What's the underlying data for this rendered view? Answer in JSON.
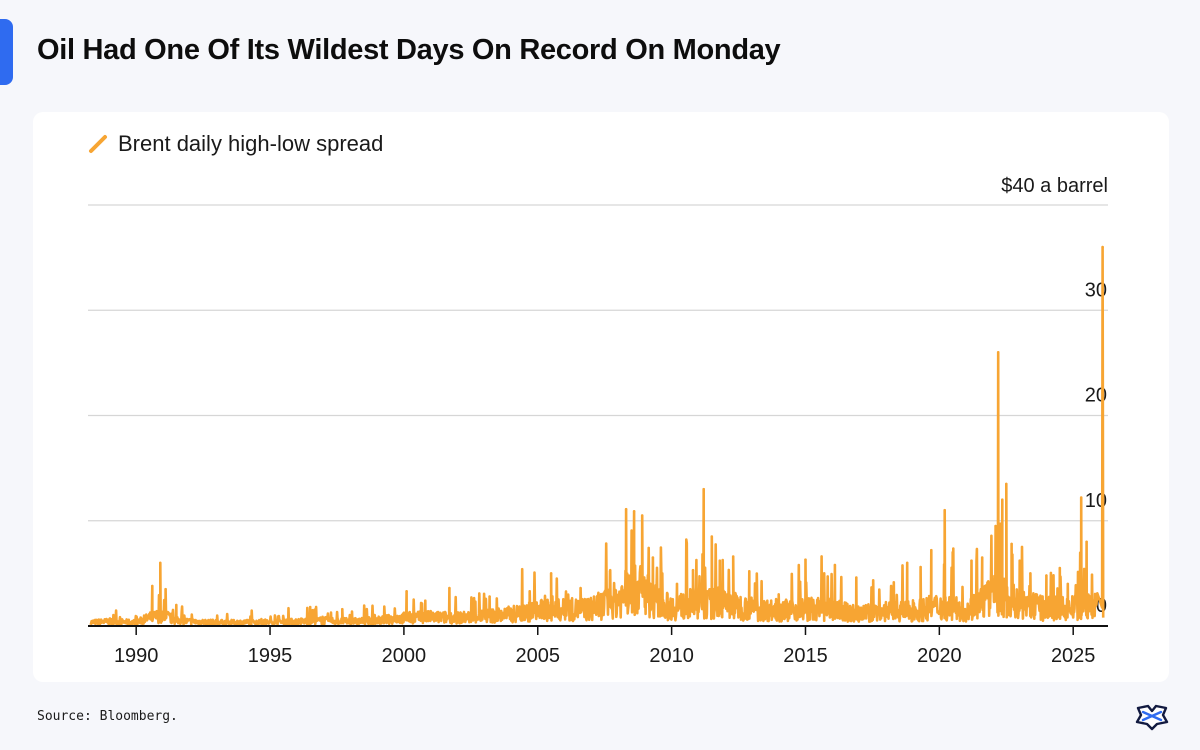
{
  "page": {
    "title": "Oil Had One Of Its Wildest Days On Record On Monday",
    "source": "Source: Bloomberg."
  },
  "colors": {
    "accent": "#2f6bf0",
    "series": "#f7a533",
    "grid": "#d6d6d6",
    "axis": "#111111"
  },
  "chart_data": {
    "type": "line",
    "title": "Oil Had One Of Its Wildest Days On Record On Monday",
    "legend": [
      {
        "label": "Brent daily high-low spread",
        "color": "#f7a533",
        "position": "top-left"
      }
    ],
    "y_unit_label": "$40 a barrel",
    "ylim": [
      0,
      40
    ],
    "yticks": [
      {
        "value": 40,
        "label": "$40 a barrel"
      },
      {
        "value": 30,
        "label": "30"
      },
      {
        "value": 20,
        "label": "20"
      },
      {
        "value": 10,
        "label": "10"
      },
      {
        "value": 0,
        "label": "0"
      }
    ],
    "xlim": [
      1988.2,
      2026.3
    ],
    "xticks": [
      {
        "value": 1990,
        "label": "1990"
      },
      {
        "value": 1995,
        "label": "1995"
      },
      {
        "value": 2000,
        "label": "2000"
      },
      {
        "value": 2005,
        "label": "2005"
      },
      {
        "value": 2010,
        "label": "2010"
      },
      {
        "value": 2015,
        "label": "2015"
      },
      {
        "value": 2020,
        "label": "2020"
      },
      {
        "value": 2025,
        "label": "2025"
      }
    ],
    "grid": true,
    "series": [
      {
        "name": "Brent daily high-low spread",
        "baseline": [
          [
            1988.3,
            0.4
          ],
          [
            1989.0,
            0.5
          ],
          [
            1990.0,
            0.4
          ],
          [
            1990.5,
            0.9
          ],
          [
            1991.0,
            1.2
          ],
          [
            1991.5,
            0.6
          ],
          [
            1992.0,
            0.5
          ],
          [
            1993.0,
            0.4
          ],
          [
            1994.0,
            0.4
          ],
          [
            1995.0,
            0.4
          ],
          [
            1996.0,
            0.5
          ],
          [
            1997.0,
            0.6
          ],
          [
            1998.0,
            0.5
          ],
          [
            1999.0,
            0.6
          ],
          [
            2000.0,
            0.9
          ],
          [
            2001.0,
            1.0
          ],
          [
            2002.0,
            0.9
          ],
          [
            2003.0,
            1.1
          ],
          [
            2004.0,
            1.3
          ],
          [
            2005.0,
            1.7
          ],
          [
            2006.0,
            1.8
          ],
          [
            2007.0,
            1.9
          ],
          [
            2008.0,
            3.0
          ],
          [
            2008.8,
            4.2
          ],
          [
            2009.5,
            2.6
          ],
          [
            2010.0,
            2.0
          ],
          [
            2011.0,
            2.6
          ],
          [
            2012.0,
            2.4
          ],
          [
            2013.0,
            1.9
          ],
          [
            2014.0,
            1.7
          ],
          [
            2015.0,
            1.9
          ],
          [
            2016.0,
            1.8
          ],
          [
            2017.0,
            1.3
          ],
          [
            2018.0,
            1.7
          ],
          [
            2019.0,
            1.6
          ],
          [
            2020.0,
            2.2
          ],
          [
            2021.0,
            1.7
          ],
          [
            2022.0,
            3.4
          ],
          [
            2022.6,
            3.0
          ],
          [
            2023.0,
            2.4
          ],
          [
            2024.0,
            1.9
          ],
          [
            2025.0,
            2.0
          ],
          [
            2025.9,
            2.2
          ]
        ],
        "spikes": [
          [
            1990.6,
            3.8
          ],
          [
            1990.9,
            6.0
          ],
          [
            1991.1,
            3.5
          ],
          [
            1991.5,
            2.0
          ],
          [
            1996.5,
            1.8
          ],
          [
            1997.7,
            1.6
          ],
          [
            2000.1,
            3.3
          ],
          [
            2000.8,
            2.4
          ],
          [
            2001.7,
            3.6
          ],
          [
            2003.2,
            2.8
          ],
          [
            2004.7,
            3.3
          ],
          [
            2005.5,
            5.0
          ],
          [
            2006.6,
            3.6
          ],
          [
            2007.1,
            2.8
          ],
          [
            2007.7,
            5.2
          ],
          [
            2008.3,
            11.1
          ],
          [
            2008.6,
            10.9
          ],
          [
            2008.9,
            10.5
          ],
          [
            2009.3,
            6.5
          ],
          [
            2010.2,
            4.0
          ],
          [
            2010.8,
            5.3
          ],
          [
            2011.2,
            13.0
          ],
          [
            2011.5,
            8.5
          ],
          [
            2011.8,
            6.2
          ],
          [
            2012.3,
            6.6
          ],
          [
            2012.9,
            5.2
          ],
          [
            2014.0,
            3.0
          ],
          [
            2014.8,
            4.2
          ],
          [
            2015.0,
            6.3
          ],
          [
            2015.7,
            5.0
          ],
          [
            2016.1,
            5.8
          ],
          [
            2016.9,
            4.6
          ],
          [
            2017.5,
            3.2
          ],
          [
            2018.2,
            3.8
          ],
          [
            2018.8,
            6.0
          ],
          [
            2019.3,
            5.6
          ],
          [
            2019.7,
            7.2
          ],
          [
            2020.2,
            11.0
          ],
          [
            2020.5,
            7.0
          ],
          [
            2021.2,
            6.2
          ],
          [
            2021.6,
            6.5
          ],
          [
            2022.1,
            9.5
          ],
          [
            2022.2,
            26.0
          ],
          [
            2022.35,
            12.0
          ],
          [
            2022.5,
            13.5
          ],
          [
            2022.7,
            7.8
          ],
          [
            2023.0,
            6.2
          ],
          [
            2023.4,
            5.0
          ],
          [
            2024.0,
            4.8
          ],
          [
            2024.5,
            5.5
          ],
          [
            2024.8,
            4.0
          ],
          [
            2025.3,
            12.2
          ],
          [
            2025.5,
            8.0
          ],
          [
            2026.1,
            36.0
          ]
        ]
      }
    ]
  }
}
